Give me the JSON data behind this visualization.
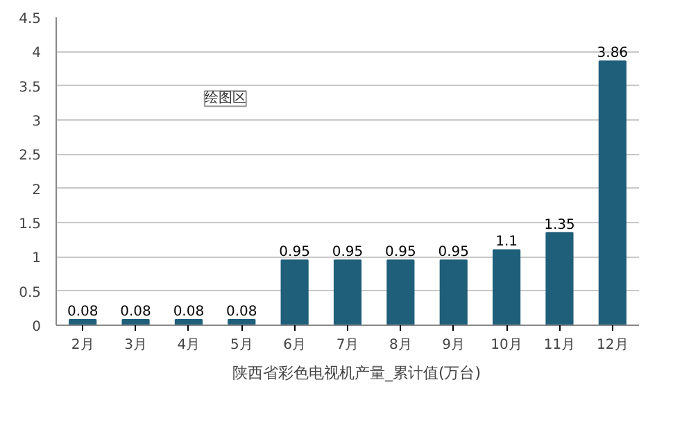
{
  "chart_data": {
    "type": "bar",
    "categories": [
      "2月",
      "3月",
      "4月",
      "5月",
      "6月",
      "7月",
      "8月",
      "9月",
      "10月",
      "11月",
      "12月"
    ],
    "series": [
      {
        "name": "陕西省彩色电视机产量_累计值(万台)",
        "color": "#1f5f7a",
        "values": [
          0.08,
          0.08,
          0.08,
          0.08,
          0.95,
          0.95,
          0.95,
          0.95,
          1.1,
          1.35,
          3.86
        ]
      }
    ],
    "ylim": [
      0,
      4.5
    ],
    "yticks": [
      0,
      0.5,
      1,
      1.5,
      2,
      2.5,
      3,
      3.5,
      4,
      4.5
    ],
    "grid": "y",
    "data_labels": true,
    "legend": "bottom",
    "annotations": [
      "绘图区"
    ]
  }
}
